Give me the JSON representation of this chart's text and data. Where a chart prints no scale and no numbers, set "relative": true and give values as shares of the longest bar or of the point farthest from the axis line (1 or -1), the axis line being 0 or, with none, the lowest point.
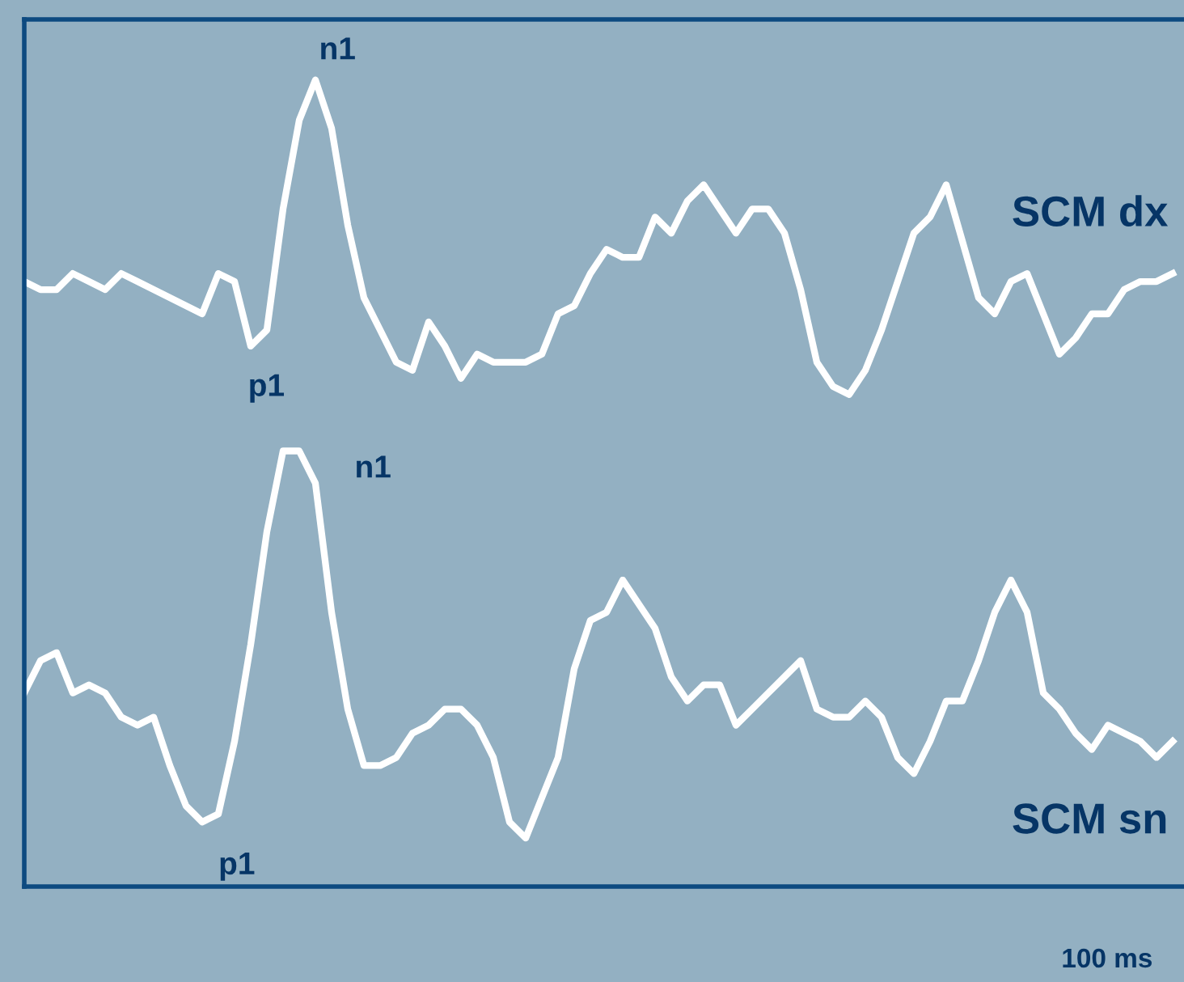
{
  "chart_data": {
    "type": "line",
    "relative": true,
    "legend": false,
    "grid": false,
    "categories": [
      null,
      null,
      null,
      null,
      null,
      null,
      null,
      null,
      null,
      null,
      null,
      null,
      null,
      null,
      null,
      null,
      null,
      null,
      null,
      null,
      null,
      null,
      null,
      null,
      null,
      null,
      null,
      null,
      null,
      null,
      null,
      null,
      null,
      null,
      null,
      null,
      null,
      null,
      null,
      null,
      null,
      null,
      null,
      null,
      null,
      null,
      null,
      null,
      null,
      null,
      null,
      null,
      null,
      null,
      null,
      null,
      null,
      null,
      null,
      null,
      null,
      null,
      null,
      null,
      null,
      null,
      null,
      null,
      null,
      null,
      null,
      null
    ],
    "series": [
      {
        "name": "SCM dx",
        "color": "#ffffff",
        "values": [
          0.75,
          0.74,
          0.74,
          0.76,
          0.75,
          0.74,
          0.76,
          0.75,
          0.74,
          0.73,
          0.72,
          0.71,
          0.76,
          0.75,
          0.67,
          0.69,
          0.84,
          0.95,
          1,
          0.94,
          0.82,
          0.73,
          0.69,
          0.65,
          0.64,
          0.7,
          0.67,
          0.63,
          0.66,
          0.65,
          0.65,
          0.65,
          0.66,
          0.71,
          0.72,
          0.76,
          0.79,
          0.78,
          0.78,
          0.83,
          0.81,
          0.85,
          0.87,
          0.84,
          0.81,
          0.84,
          0.84,
          0.81,
          0.74,
          0.65,
          0.62,
          0.61,
          0.64,
          0.69,
          0.75,
          0.81,
          0.83,
          0.87,
          0.8,
          0.73,
          0.71,
          0.75,
          0.76,
          0.71,
          0.66,
          0.68,
          0.71,
          0.71,
          0.74,
          0.75,
          0.75,
          0.76
        ]
      },
      {
        "name": "SCM sn",
        "color": "#ffffff",
        "values": [
          0.24,
          0.28,
          0.29,
          0.24,
          0.25,
          0.24,
          0.21,
          0.2,
          0.21,
          0.15,
          0.1,
          0.08,
          0.09,
          0.18,
          0.3,
          0.44,
          0.54,
          0.54,
          0.5,
          0.34,
          0.22,
          0.15,
          0.15,
          0.16,
          0.19,
          0.2,
          0.22,
          0.22,
          0.2,
          0.16,
          0.08,
          0.06,
          0.11,
          0.16,
          0.27,
          0.33,
          0.34,
          0.38,
          0.35,
          0.32,
          0.26,
          0.23,
          0.25,
          0.25,
          0.2,
          0.22,
          0.24,
          0.26,
          0.28,
          0.22,
          0.21,
          0.21,
          0.23,
          0.21,
          0.16,
          0.14,
          0.18,
          0.23,
          0.23,
          0.28,
          0.34,
          0.38,
          0.34,
          0.24,
          0.22,
          0.19,
          0.17,
          0.2,
          0.19,
          0.18,
          0.16,
          0.18
        ]
      }
    ],
    "annotations": [
      "n1",
      "p1",
      "n1",
      "p1",
      "100 ms"
    ]
  }
}
